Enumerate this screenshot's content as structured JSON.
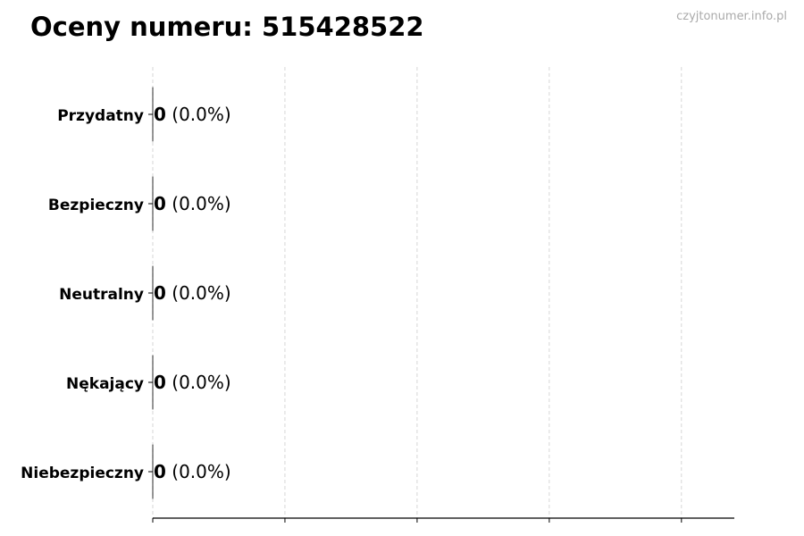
{
  "watermark": "czyjtonumer.info.pl",
  "chart_data": {
    "type": "bar",
    "orientation": "horizontal",
    "title": "Oceny numeru: 515428522",
    "categories": [
      "Przydatny",
      "Bezpieczny",
      "Neutralny",
      "Nękający",
      "Niebezpieczny"
    ],
    "values": [
      0,
      0,
      0,
      0,
      0
    ],
    "value_labels": [
      "0",
      "0",
      "0",
      "0",
      "0"
    ],
    "percent_labels": [
      "(0.0%)",
      "(0.0%)",
      "(0.0%)",
      "(0.0%)",
      "(0.0%)"
    ],
    "xlim": [
      0,
      4.4
    ],
    "xticks": [
      0,
      1,
      2,
      3,
      4
    ],
    "xtick_labels_shown": false,
    "grid": "vertical dashed",
    "colors": {
      "bar_edge": "#000000",
      "grid": "#cccccc",
      "watermark": "#aaaaaa"
    }
  }
}
